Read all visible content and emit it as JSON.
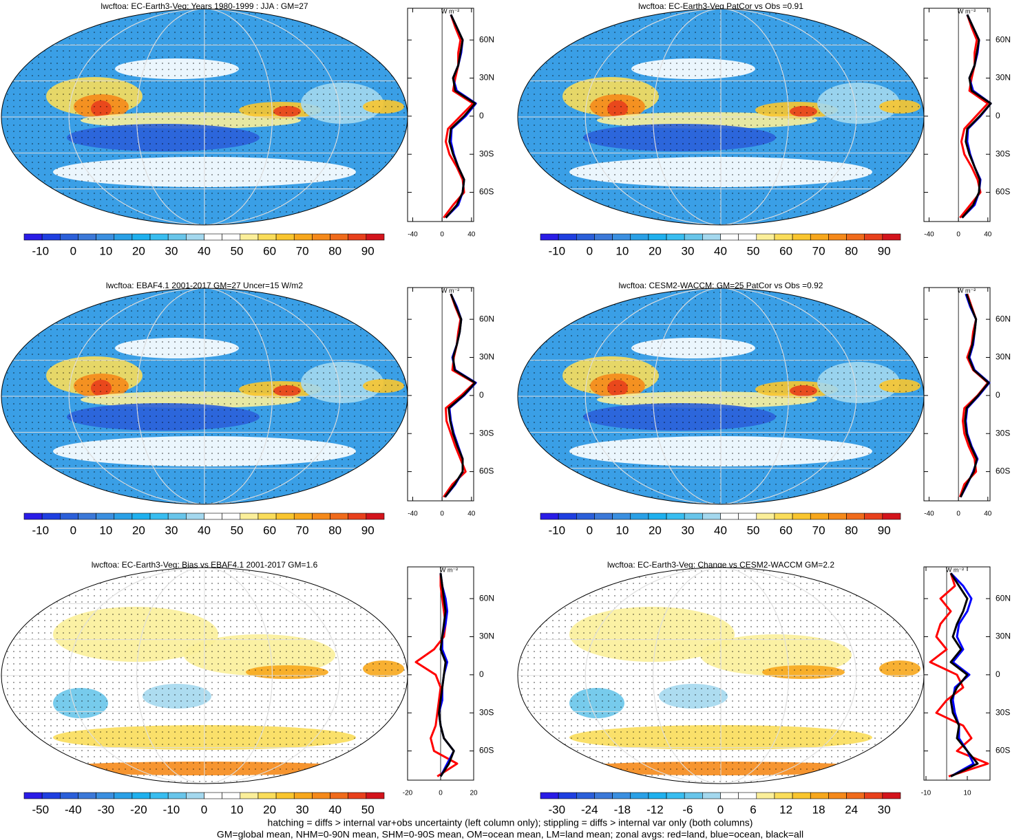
{
  "chart_data": [
    {
      "type": "map",
      "title": "lwcftoa: EC-Earth3-Veg: Years 1980-1999 : JJA : GM=27",
      "clim": [
        -15,
        95
      ],
      "cticks": [
        -10,
        0,
        10,
        20,
        30,
        40,
        50,
        60,
        70,
        80,
        90
      ],
      "colors": [
        "#2a1ce6",
        "#1f3fe0",
        "#2b5fd9",
        "#3b78d8",
        "#3a8fe0",
        "#2aa0e6",
        "#1fb0ee",
        "#38bdf0",
        "#68c5ea",
        "#a4d8ee",
        "#ffffff",
        "#ffffff",
        "#fbef9a",
        "#fadd5a",
        "#f9c52e",
        "#f7a71c",
        "#f5891a",
        "#f06b1b",
        "#e8401c",
        "#d3141c"
      ]
    },
    {
      "type": "line",
      "units": "W m⁻²",
      "xlim": [
        -47,
        43
      ],
      "xticks": [
        -40,
        0,
        40
      ],
      "ylim": [
        -83,
        85
      ],
      "yticks": [
        {
          "value": 60,
          "label": "60N"
        },
        {
          "value": 30,
          "label": "30N"
        },
        0,
        {
          "value": -30,
          "label": "30S"
        },
        {
          "value": -60,
          "label": "60S"
        }
      ],
      "lat": [
        -80,
        -70,
        -60,
        -50,
        -40,
        -30,
        -20,
        -10,
        0,
        10,
        20,
        30,
        40,
        50,
        60,
        70,
        80
      ],
      "series": [
        {
          "color": "#ff0000",
          "values": [
            2,
            15,
            30,
            28,
            20,
            10,
            5,
            8,
            25,
            42,
            15,
            18,
            22,
            22,
            25,
            18,
            12
          ]
        },
        {
          "color": "#0000ff",
          "values": [
            5,
            22,
            28,
            30,
            22,
            16,
            12,
            13,
            32,
            46,
            20,
            15,
            22,
            26,
            28,
            20,
            12
          ]
        },
        {
          "color": "#000000",
          "values": [
            5,
            20,
            28,
            30,
            22,
            15,
            10,
            12,
            30,
            45,
            18,
            15,
            22,
            25,
            28,
            20,
            12
          ]
        }
      ]
    },
    {
      "type": "map",
      "title": "lwcftoa: EC-Earth3-Veg PatCor vs Obs =0.91",
      "clim": [
        -15,
        95
      ],
      "cticks": [
        -10,
        0,
        10,
        20,
        30,
        40,
        50,
        60,
        70,
        80,
        90
      ],
      "colors": [
        "#2a1ce6",
        "#1f3fe0",
        "#2b5fd9",
        "#3b78d8",
        "#3a8fe0",
        "#2aa0e6",
        "#1fb0ee",
        "#38bdf0",
        "#68c5ea",
        "#a4d8ee",
        "#ffffff",
        "#ffffff",
        "#fbef9a",
        "#fadd5a",
        "#f9c52e",
        "#f7a71c",
        "#f5891a",
        "#f06b1b",
        "#e8401c",
        "#d3141c"
      ]
    },
    {
      "type": "line",
      "units": "W m⁻²",
      "xlim": [
        -47,
        43
      ],
      "xticks": [
        -40,
        0,
        40
      ],
      "ylim": [
        -83,
        85
      ],
      "yticks": [
        {
          "value": 60,
          "label": "60N"
        },
        {
          "value": 30,
          "label": "30N"
        },
        0,
        {
          "value": -30,
          "label": "30S"
        },
        {
          "value": -60,
          "label": "60S"
        }
      ],
      "lat": [
        -80,
        -70,
        -60,
        -50,
        -40,
        -30,
        -20,
        -10,
        0,
        10,
        20,
        30,
        40,
        50,
        60,
        70,
        80
      ],
      "series": [
        {
          "color": "#ff0000",
          "values": [
            2,
            16,
            30,
            26,
            18,
            8,
            4,
            8,
            24,
            40,
            15,
            18,
            22,
            22,
            25,
            18,
            12
          ]
        },
        {
          "color": "#0000ff",
          "values": [
            5,
            22,
            28,
            30,
            22,
            16,
            12,
            13,
            30,
            44,
            20,
            15,
            22,
            26,
            28,
            20,
            12
          ]
        },
        {
          "color": "#000000",
          "values": [
            5,
            20,
            28,
            29,
            22,
            15,
            10,
            12,
            29,
            44,
            18,
            15,
            22,
            25,
            28,
            20,
            12
          ]
        }
      ]
    },
    {
      "type": "map",
      "title": "lwcftoa: EBAF4.1 2001-2017 GM=27 Uncer=15 W/m2",
      "clim": [
        -15,
        95
      ],
      "cticks": [
        -10,
        0,
        10,
        20,
        30,
        40,
        50,
        60,
        70,
        80,
        90
      ],
      "colors": [
        "#2a1ce6",
        "#1f3fe0",
        "#2b5fd9",
        "#3b78d8",
        "#3a8fe0",
        "#2aa0e6",
        "#1fb0ee",
        "#38bdf0",
        "#68c5ea",
        "#a4d8ee",
        "#ffffff",
        "#ffffff",
        "#fbef9a",
        "#fadd5a",
        "#f9c52e",
        "#f7a71c",
        "#f5891a",
        "#f06b1b",
        "#e8401c",
        "#d3141c"
      ]
    },
    {
      "type": "line",
      "units": "W m⁻²",
      "xlim": [
        -47,
        43
      ],
      "xticks": [
        -40,
        0,
        40
      ],
      "ylim": [
        -83,
        85
      ],
      "yticks": [
        {
          "value": 60,
          "label": "60N"
        },
        {
          "value": 30,
          "label": "30N"
        },
        0,
        {
          "value": -30,
          "label": "30S"
        },
        {
          "value": -60,
          "label": "60S"
        }
      ],
      "lat": [
        -80,
        -70,
        -60,
        -50,
        -40,
        -30,
        -20,
        -10,
        0,
        10,
        20,
        30,
        40,
        50,
        60,
        70,
        80
      ],
      "series": [
        {
          "color": "#ff0000",
          "values": [
            2,
            14,
            32,
            25,
            18,
            12,
            6,
            5,
            26,
            44,
            14,
            16,
            20,
            22,
            25,
            18,
            12
          ]
        },
        {
          "color": "#0000ff",
          "values": [
            4,
            18,
            28,
            28,
            22,
            16,
            12,
            10,
            30,
            46,
            18,
            14,
            20,
            24,
            26,
            20,
            12
          ]
        },
        {
          "color": "#000000",
          "values": [
            4,
            17,
            28,
            28,
            21,
            15,
            11,
            9,
            29,
            45,
            17,
            15,
            20,
            24,
            26,
            19,
            12
          ]
        }
      ]
    },
    {
      "type": "map",
      "title": "lwcftoa: CESM2-WACCM: GM=25 PatCor vs Obs =0.92",
      "clim": [
        -15,
        95
      ],
      "cticks": [
        -10,
        0,
        10,
        20,
        30,
        40,
        50,
        60,
        70,
        80,
        90
      ],
      "colors": [
        "#2a1ce6",
        "#1f3fe0",
        "#2b5fd9",
        "#3b78d8",
        "#3a8fe0",
        "#2aa0e6",
        "#1fb0ee",
        "#38bdf0",
        "#68c5ea",
        "#a4d8ee",
        "#ffffff",
        "#ffffff",
        "#fbef9a",
        "#fadd5a",
        "#f9c52e",
        "#f7a71c",
        "#f5891a",
        "#f06b1b",
        "#e8401c",
        "#d3141c"
      ]
    },
    {
      "type": "line",
      "units": "W m⁻²",
      "xlim": [
        -47,
        43
      ],
      "xticks": [
        -40,
        0,
        40
      ],
      "ylim": [
        -83,
        85
      ],
      "yticks": [
        {
          "value": 60,
          "label": "60N"
        },
        {
          "value": 30,
          "label": "30N"
        },
        0,
        {
          "value": -30,
          "label": "30S"
        },
        {
          "value": -60,
          "label": "60S"
        }
      ],
      "lat": [
        -80,
        -70,
        -60,
        -50,
        -40,
        -30,
        -20,
        -10,
        0,
        10,
        20,
        30,
        40,
        50,
        60,
        70,
        80
      ],
      "series": [
        {
          "color": "#ff0000",
          "values": [
            2,
            8,
            24,
            22,
            14,
            8,
            6,
            8,
            26,
            40,
            20,
            12,
            18,
            20,
            24,
            18,
            12
          ]
        },
        {
          "color": "#0000ff",
          "values": [
            3,
            12,
            20,
            26,
            18,
            12,
            10,
            12,
            28,
            42,
            22,
            15,
            20,
            22,
            24,
            16,
            10
          ]
        },
        {
          "color": "#000000",
          "values": [
            3,
            11,
            21,
            25,
            17,
            11,
            9,
            11,
            27,
            41,
            21,
            14,
            19,
            22,
            24,
            17,
            11
          ]
        }
      ]
    },
    {
      "type": "map",
      "title": "lwcftoa: EC-Earth3-Veg: Bias vs EBAF4.1 2001-2017 GM=1.6",
      "clim": [
        -55,
        55
      ],
      "cticks": [
        -50,
        -40,
        -30,
        -20,
        -10,
        0,
        10,
        20,
        30,
        40,
        50
      ],
      "colors": [
        "#2a1ce6",
        "#1f3fe0",
        "#2b5fd9",
        "#3b78d8",
        "#3a8fe0",
        "#2aa0e6",
        "#1fb0ee",
        "#38bdf0",
        "#68c5ea",
        "#a4d8ee",
        "#ffffff",
        "#ffffff",
        "#fbef9a",
        "#fadd5a",
        "#f9c52e",
        "#f7a71c",
        "#f5891a",
        "#f06b1b",
        "#e8401c",
        "#d3141c"
      ]
    },
    {
      "type": "line",
      "units": "W m⁻²",
      "xlim": [
        -20,
        20
      ],
      "xticks": [
        -20,
        0,
        20
      ],
      "ylim": [
        -83,
        85
      ],
      "yticks": [
        {
          "value": 60,
          "label": "60N"
        },
        {
          "value": 30,
          "label": "30N"
        },
        0,
        {
          "value": -30,
          "label": "30S"
        },
        {
          "value": -60,
          "label": "60S"
        }
      ],
      "lat": [
        -80,
        -70,
        -60,
        -50,
        -40,
        -30,
        -20,
        -10,
        0,
        10,
        20,
        30,
        40,
        50,
        60,
        70,
        80
      ],
      "series": [
        {
          "color": "#ff0000",
          "values": [
            -2,
            10,
            -4,
            -6,
            -3,
            -2,
            -1,
            0,
            -3,
            -15,
            -4,
            2,
            3,
            2,
            1,
            0,
            0
          ]
        },
        {
          "color": "#0000ff",
          "values": [
            0,
            4,
            8,
            2,
            0,
            -1,
            1,
            1,
            2,
            4,
            1,
            1,
            3,
            4,
            3,
            1,
            0
          ]
        },
        {
          "color": "#000000",
          "values": [
            0,
            5,
            8,
            2,
            0,
            -1,
            0,
            1,
            2,
            3,
            0,
            1,
            2,
            3,
            2,
            1,
            0
          ]
        }
      ]
    },
    {
      "type": "map",
      "title": "lwcftoa: EC-Earth3-Veg: Change vs CESM2-WACCM GM=2.2",
      "clim": [
        -33,
        33
      ],
      "cticks": [
        -30,
        -24,
        -18,
        -12,
        -6,
        0,
        6,
        12,
        18,
        24,
        30
      ],
      "colors": [
        "#2a1ce6",
        "#1f3fe0",
        "#2b5fd9",
        "#3b78d8",
        "#3a8fe0",
        "#2aa0e6",
        "#1fb0ee",
        "#38bdf0",
        "#68c5ea",
        "#a4d8ee",
        "#ffffff",
        "#ffffff",
        "#fbef9a",
        "#fadd5a",
        "#f9c52e",
        "#f7a71c",
        "#f5891a",
        "#f06b1b",
        "#e8401c",
        "#d3141c"
      ]
    },
    {
      "type": "line",
      "units": "W m⁻²",
      "xlim": [
        -11,
        21
      ],
      "xticks": [
        -10,
        10
      ],
      "ylim": [
        -83,
        85
      ],
      "yticks": [
        {
          "value": 60,
          "label": "60N"
        },
        {
          "value": 30,
          "label": "30N"
        },
        0,
        {
          "value": -30,
          "label": "30S"
        },
        {
          "value": -60,
          "label": "60S"
        }
      ],
      "lat": [
        -80,
        -70,
        -60,
        -50,
        -40,
        -30,
        -20,
        -10,
        0,
        10,
        20,
        30,
        40,
        50,
        60,
        70,
        80
      ],
      "series": [
        {
          "color": "#ff0000",
          "values": [
            1,
            20,
            5,
            12,
            8,
            -5,
            0,
            8,
            5,
            -8,
            0,
            -5,
            -3,
            2,
            -3,
            4,
            2
          ]
        },
        {
          "color": "#0000ff",
          "values": [
            2,
            13,
            10,
            6,
            6,
            4,
            3,
            4,
            11,
            3,
            8,
            5,
            6,
            10,
            12,
            8,
            2
          ]
        },
        {
          "color": "#000000",
          "values": [
            2,
            15,
            10,
            5,
            6,
            3,
            2,
            5,
            10,
            2,
            7,
            3,
            5,
            8,
            10,
            6,
            2
          ]
        }
      ]
    }
  ],
  "footnotes": [
    "hatching = diffs > internal var+obs uncertainty (left column only); stippling = diffs > internal var only (both columns)",
    "GM=global mean, NHM=0-90N mean, SHM=0-90S mean, OM=ocean mean, LM=land mean; zonal avgs: red=land, blue=ocean, black=all"
  ]
}
